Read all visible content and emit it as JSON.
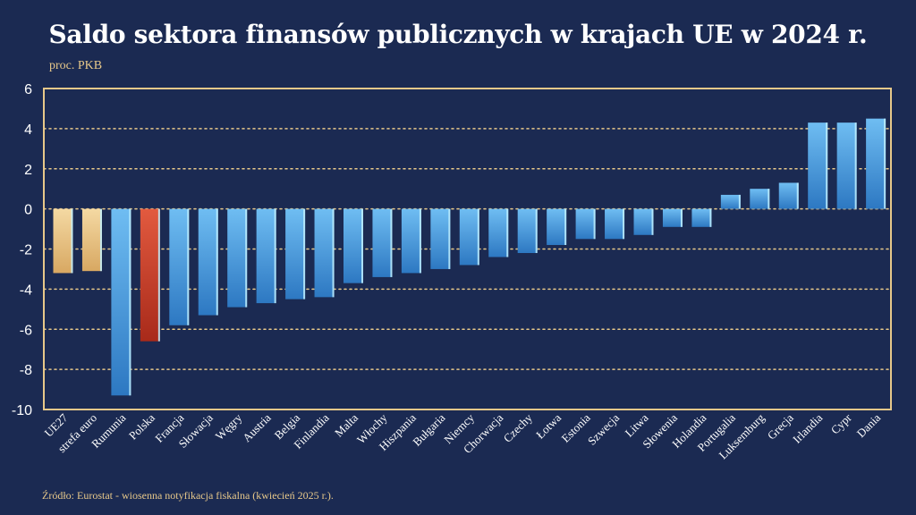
{
  "chart_data": {
    "type": "bar",
    "title": "Saldo sektora finansów publicznych w krajach UE w 2024 r.",
    "subtitle": "proc. PKB",
    "source": "Źródło: Eurostat - wiosenna notyfikacja fiskalna (kwiecień 2025 r.).",
    "xlabel": "",
    "ylabel": "",
    "ylim": [
      -10,
      6
    ],
    "yticks": [
      6,
      4,
      2,
      0,
      -2,
      -4,
      -6,
      -8,
      -10
    ],
    "grid": true,
    "categories": [
      "UE27",
      "strefa euro",
      "Rumunia",
      "Polska",
      "Francja",
      "Słowacja",
      "Węgry",
      "Austria",
      "Belgia",
      "Finlandia",
      "Malta",
      "Włochy",
      "Hiszpania",
      "Bułgaria",
      "Niemcy",
      "Chorwacja",
      "Czechy",
      "Łotwa",
      "Estonia",
      "Szwecja",
      "Litwa",
      "Słowenia",
      "Holandia",
      "Portugalia",
      "Luksemburg",
      "Grecja",
      "Irlandia",
      "Cypr",
      "Dania"
    ],
    "values": [
      -3.2,
      -3.1,
      -9.3,
      -6.6,
      -5.8,
      -5.3,
      -4.9,
      -4.7,
      -4.5,
      -4.4,
      -3.7,
      -3.4,
      -3.2,
      -3.0,
      -2.8,
      -2.4,
      -2.2,
      -1.8,
      -1.5,
      -1.5,
      -1.3,
      -0.9,
      -0.9,
      0.7,
      1.0,
      1.3,
      4.3,
      4.3,
      4.5
    ],
    "bar_groups": [
      "aggregate",
      "aggregate",
      "country",
      "highlight",
      "country",
      "country",
      "country",
      "country",
      "country",
      "country",
      "country",
      "country",
      "country",
      "country",
      "country",
      "country",
      "country",
      "country",
      "country",
      "country",
      "country",
      "country",
      "country",
      "country",
      "country",
      "country",
      "country",
      "country",
      "country"
    ]
  },
  "colors": {
    "background": "#1b2a52",
    "frame": "#e7c88a",
    "gridline": "#e7c88a",
    "aggregate_top": "#f4d9a3",
    "aggregate_bottom": "#d8a862",
    "highlight_top": "#e25a3f",
    "highlight_bottom": "#a82a1a",
    "country_top": "#6fbdf2",
    "country_bottom": "#2d78c2",
    "bar_edge": "#bff0ff"
  }
}
